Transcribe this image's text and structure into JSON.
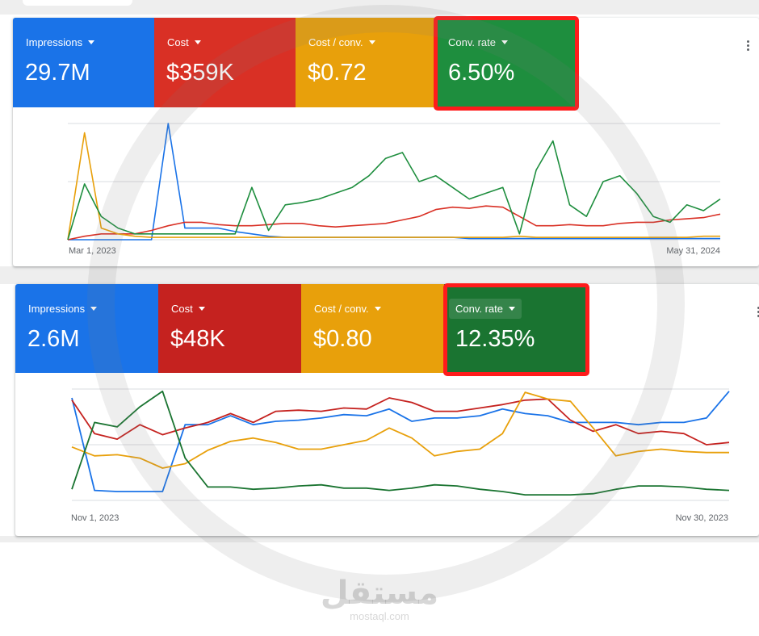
{
  "cards": [
    {
      "metrics": [
        {
          "name": "Impressions",
          "value": "29.7M",
          "color": "#1a73e8"
        },
        {
          "name": "Cost",
          "value": "$359K",
          "color": "#d93025"
        },
        {
          "name": "Cost / conv.",
          "value": "$0.72",
          "color": "#e8a00b"
        },
        {
          "name": "Conv. rate",
          "value": "6.50%",
          "color": "#1e8e3e"
        }
      ],
      "x_start": "Mar 1, 2023",
      "x_end": "May 31, 2024"
    },
    {
      "metrics": [
        {
          "name": "Impressions",
          "value": "2.6M",
          "color": "#1a73e8"
        },
        {
          "name": "Cost",
          "value": "$48K",
          "color": "#c5221f"
        },
        {
          "name": "Cost / conv.",
          "value": "$0.80",
          "color": "#e8a00b"
        },
        {
          "name": "Conv. rate",
          "value": "12.35%",
          "color": "#1a7431"
        }
      ],
      "x_start": "Nov 1, 2023",
      "x_end": "Nov 30, 2023"
    }
  ],
  "chart_data": [
    {
      "type": "line",
      "title": "",
      "x_range": [
        "Mar 1, 2023",
        "May 31, 2024"
      ],
      "series": [
        {
          "name": "Impressions",
          "color": "#1a73e8",
          "values": [
            0,
            0,
            0,
            0,
            0,
            0,
            1.0,
            0.1,
            0.1,
            0.1,
            0.07,
            0.05,
            0.03,
            0.02,
            0.02,
            0.02,
            0.02,
            0.02,
            0.02,
            0.02,
            0.02,
            0.02,
            0.02,
            0.02,
            0.01,
            0.01,
            0.01,
            0.01,
            0.01,
            0.01,
            0.01,
            0.01,
            0.01,
            0.01,
            0.01,
            0.01,
            0.01,
            0.01,
            0.01,
            0.01
          ]
        },
        {
          "name": "Cost",
          "color": "#d93025",
          "values": [
            0,
            0.03,
            0.05,
            0.05,
            0.05,
            0.08,
            0.12,
            0.15,
            0.15,
            0.13,
            0.12,
            0.12,
            0.13,
            0.14,
            0.14,
            0.12,
            0.11,
            0.12,
            0.13,
            0.14,
            0.17,
            0.2,
            0.26,
            0.28,
            0.27,
            0.29,
            0.28,
            0.2,
            0.12,
            0.12,
            0.13,
            0.12,
            0.12,
            0.14,
            0.15,
            0.15,
            0.17,
            0.18,
            0.19,
            0.22
          ]
        },
        {
          "name": "Cost / conv.",
          "color": "#e8a00b",
          "values": [
            0,
            0.92,
            0.1,
            0.05,
            0.03,
            0.02,
            0.02,
            0.02,
            0.02,
            0.02,
            0.02,
            0.02,
            0.02,
            0.02,
            0.02,
            0.02,
            0.02,
            0.02,
            0.02,
            0.02,
            0.02,
            0.02,
            0.02,
            0.02,
            0.02,
            0.02,
            0.02,
            0.03,
            0.02,
            0.02,
            0.02,
            0.02,
            0.02,
            0.02,
            0.02,
            0.02,
            0.02,
            0.02,
            0.03,
            0.03
          ]
        },
        {
          "name": "Conv. rate",
          "color": "#1e8e3e",
          "values": [
            0,
            0.48,
            0.2,
            0.1,
            0.05,
            0.05,
            0.05,
            0.05,
            0.05,
            0.05,
            0.05,
            0.45,
            0.08,
            0.3,
            0.32,
            0.35,
            0.4,
            0.45,
            0.55,
            0.7,
            0.75,
            0.5,
            0.55,
            0.45,
            0.35,
            0.4,
            0.45,
            0.05,
            0.6,
            0.85,
            0.3,
            0.2,
            0.5,
            0.55,
            0.4,
            0.2,
            0.15,
            0.3,
            0.25,
            0.35
          ]
        }
      ]
    },
    {
      "type": "line",
      "title": "",
      "x_range": [
        "Nov 1, 2023",
        "Nov 30, 2023"
      ],
      "series": [
        {
          "name": "Impressions",
          "color": "#1a73e8",
          "values": [
            0.92,
            0.09,
            0.08,
            0.08,
            0.08,
            0.68,
            0.68,
            0.76,
            0.68,
            0.71,
            0.72,
            0.74,
            0.77,
            0.76,
            0.82,
            0.71,
            0.74,
            0.74,
            0.76,
            0.82,
            0.78,
            0.76,
            0.7,
            0.7,
            0.7,
            0.68,
            0.7,
            0.7,
            0.74,
            0.98
          ]
        },
        {
          "name": "Cost",
          "color": "#c5221f",
          "values": [
            0.9,
            0.6,
            0.55,
            0.68,
            0.59,
            0.65,
            0.7,
            0.78,
            0.7,
            0.8,
            0.81,
            0.8,
            0.83,
            0.82,
            0.92,
            0.88,
            0.8,
            0.8,
            0.83,
            0.86,
            0.9,
            0.91,
            0.72,
            0.62,
            0.68,
            0.6,
            0.62,
            0.6,
            0.5,
            0.52
          ]
        },
        {
          "name": "Cost / conv.",
          "color": "#e8a00b",
          "values": [
            0.48,
            0.4,
            0.41,
            0.38,
            0.29,
            0.33,
            0.45,
            0.53,
            0.56,
            0.52,
            0.46,
            0.46,
            0.5,
            0.54,
            0.65,
            0.56,
            0.4,
            0.44,
            0.46,
            0.6,
            0.97,
            0.91,
            0.89,
            0.65,
            0.4,
            0.44,
            0.46,
            0.44,
            0.43,
            0.43
          ]
        },
        {
          "name": "Conv. rate",
          "color": "#1a7431",
          "values": [
            0.1,
            0.7,
            0.66,
            0.84,
            0.98,
            0.38,
            0.12,
            0.12,
            0.1,
            0.11,
            0.13,
            0.14,
            0.11,
            0.11,
            0.09,
            0.11,
            0.14,
            0.13,
            0.1,
            0.08,
            0.05,
            0.05,
            0.05,
            0.06,
            0.1,
            0.13,
            0.13,
            0.12,
            0.1,
            0.09
          ]
        }
      ]
    }
  ],
  "watermark": {
    "arabic": "مستقل",
    "latin": "mostaql.com"
  }
}
